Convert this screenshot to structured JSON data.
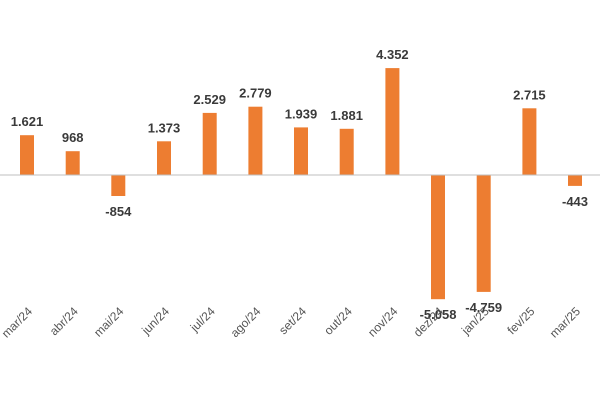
{
  "chart_data": {
    "type": "bar",
    "categories": [
      "mar/24",
      "abr/24",
      "mai/24",
      "jun/24",
      "jul/24",
      "ago/24",
      "set/24",
      "out/24",
      "nov/24",
      "dez/24",
      "jan/25",
      "fev/25",
      "mar/25"
    ],
    "values": [
      1621,
      968,
      -854,
      1373,
      2529,
      2779,
      1939,
      1881,
      4352,
      -5058,
      -4759,
      2715,
      -443
    ],
    "data_labels": [
      "1.621",
      "968",
      "-854",
      "1.373",
      "2.529",
      "2.779",
      "1.939",
      "1.881",
      "4.352",
      "-5.058",
      "-4.759",
      "2.715",
      "-443"
    ],
    "title": "",
    "xlabel": "",
    "ylabel": "",
    "ylim": [
      -5500,
      5000
    ],
    "grid": false,
    "legend": "none",
    "colors": {
      "bar": "#ED7D31",
      "axis": "#BFBFBF"
    }
  }
}
